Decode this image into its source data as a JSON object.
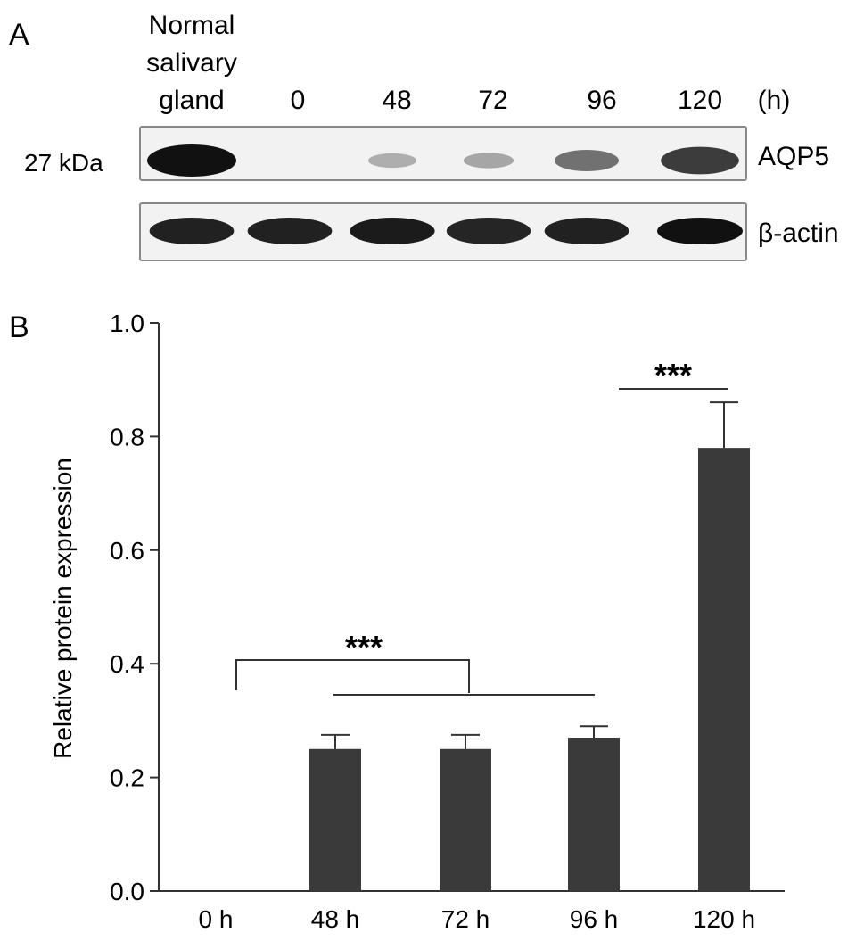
{
  "panel_a": {
    "label": "A",
    "lane_header_lines": [
      "Normal",
      "salivary",
      "gland"
    ],
    "lane_labels": [
      "0",
      "48",
      "72",
      "96",
      "120"
    ],
    "time_unit": "(h)",
    "mw_label": "27 kDa",
    "blots": [
      {
        "name": "AQP5",
        "band_intensity": [
          1.0,
          0.0,
          0.18,
          0.22,
          0.5,
          0.78
        ]
      },
      {
        "name": "β-actin",
        "band_intensity": [
          0.92,
          0.92,
          0.95,
          0.9,
          0.92,
          1.0
        ]
      }
    ],
    "colors": {
      "band": "#111111",
      "membrane": "#f2f2f2",
      "frame": "#888888"
    }
  },
  "chart_data": {
    "label": "B",
    "type": "bar",
    "categories": [
      "0 h",
      "48 h",
      "72 h",
      "96 h",
      "120 h"
    ],
    "values": [
      0.0,
      0.25,
      0.25,
      0.27,
      0.78
    ],
    "errors": [
      0.0,
      0.025,
      0.025,
      0.02,
      0.08
    ],
    "ylabel": "Relative protein expression",
    "xlabel": "",
    "ylim": [
      0.0,
      1.0
    ],
    "yticks": [
      "0.0",
      "0.2",
      "0.4",
      "0.6",
      "0.8",
      "1.0"
    ],
    "grid": false,
    "bar_color": "#3a3a3a",
    "annotations": [
      {
        "text": "***",
        "comparison": "0 h vs 48 h, 72 h, 96 h"
      },
      {
        "text": "***",
        "comparison": "120 h"
      }
    ]
  }
}
